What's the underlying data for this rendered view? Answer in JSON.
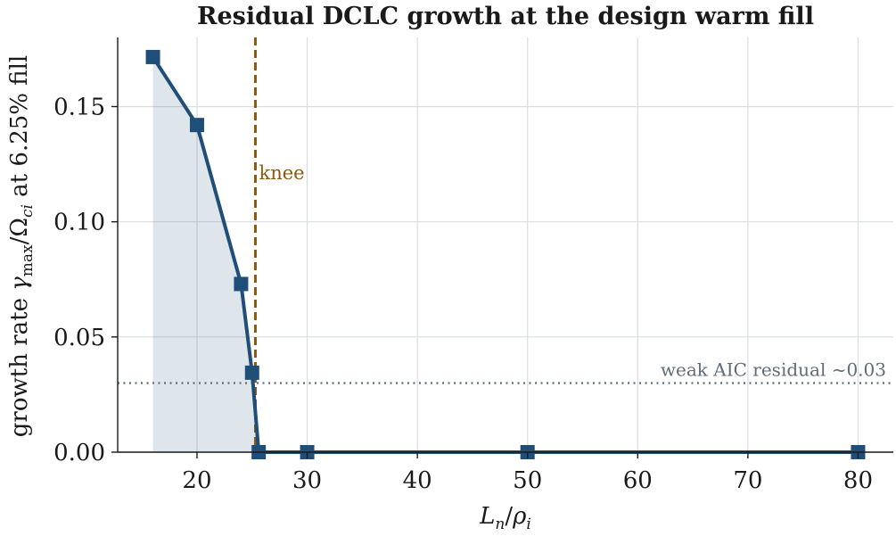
{
  "chart_data": {
    "type": "line",
    "title": "Residual DCLC growth at the design warm fill",
    "xlabel": {
      "main": "L",
      "sub": "n",
      "slash": "/",
      "main2": "ρ",
      "sub2": "i"
    },
    "ylabel": {
      "prefix": "growth rate ",
      "gamma": "γ",
      "gamma_sub": "max",
      "slash": "/",
      "omega": "Ω",
      "omega_sub": "ci",
      "suffix": " at 6.25% fill"
    },
    "xlim": [
      12.8,
      83.2
    ],
    "ylim": [
      0.0,
      0.18
    ],
    "xticks": [
      20,
      30,
      40,
      50,
      60,
      70,
      80
    ],
    "xtick_labels": [
      "20",
      "30",
      "40",
      "50",
      "60",
      "70",
      "80"
    ],
    "yticks": [
      0.0,
      0.05,
      0.1,
      0.15
    ],
    "ytick_labels": [
      "0.00",
      "0.05",
      "0.10",
      "0.15"
    ],
    "grid": true,
    "series": [
      {
        "x": [
          16,
          20,
          24,
          25,
          25.6,
          30,
          50,
          80
        ],
        "y": [
          0.1715,
          0.142,
          0.073,
          0.0345,
          0.0,
          0.0,
          0.0,
          0.0
        ],
        "marker": "square",
        "color": "#1f4e79",
        "fill_under": true,
        "fill_color": "#1f4e79"
      }
    ],
    "annotations": {
      "knee": {
        "x": 25.3,
        "label": "knee",
        "color": "#8b5a12"
      },
      "reference": {
        "y": 0.03,
        "label": "weak AIC residual ~0.03",
        "color": "#5f6b78"
      }
    }
  }
}
